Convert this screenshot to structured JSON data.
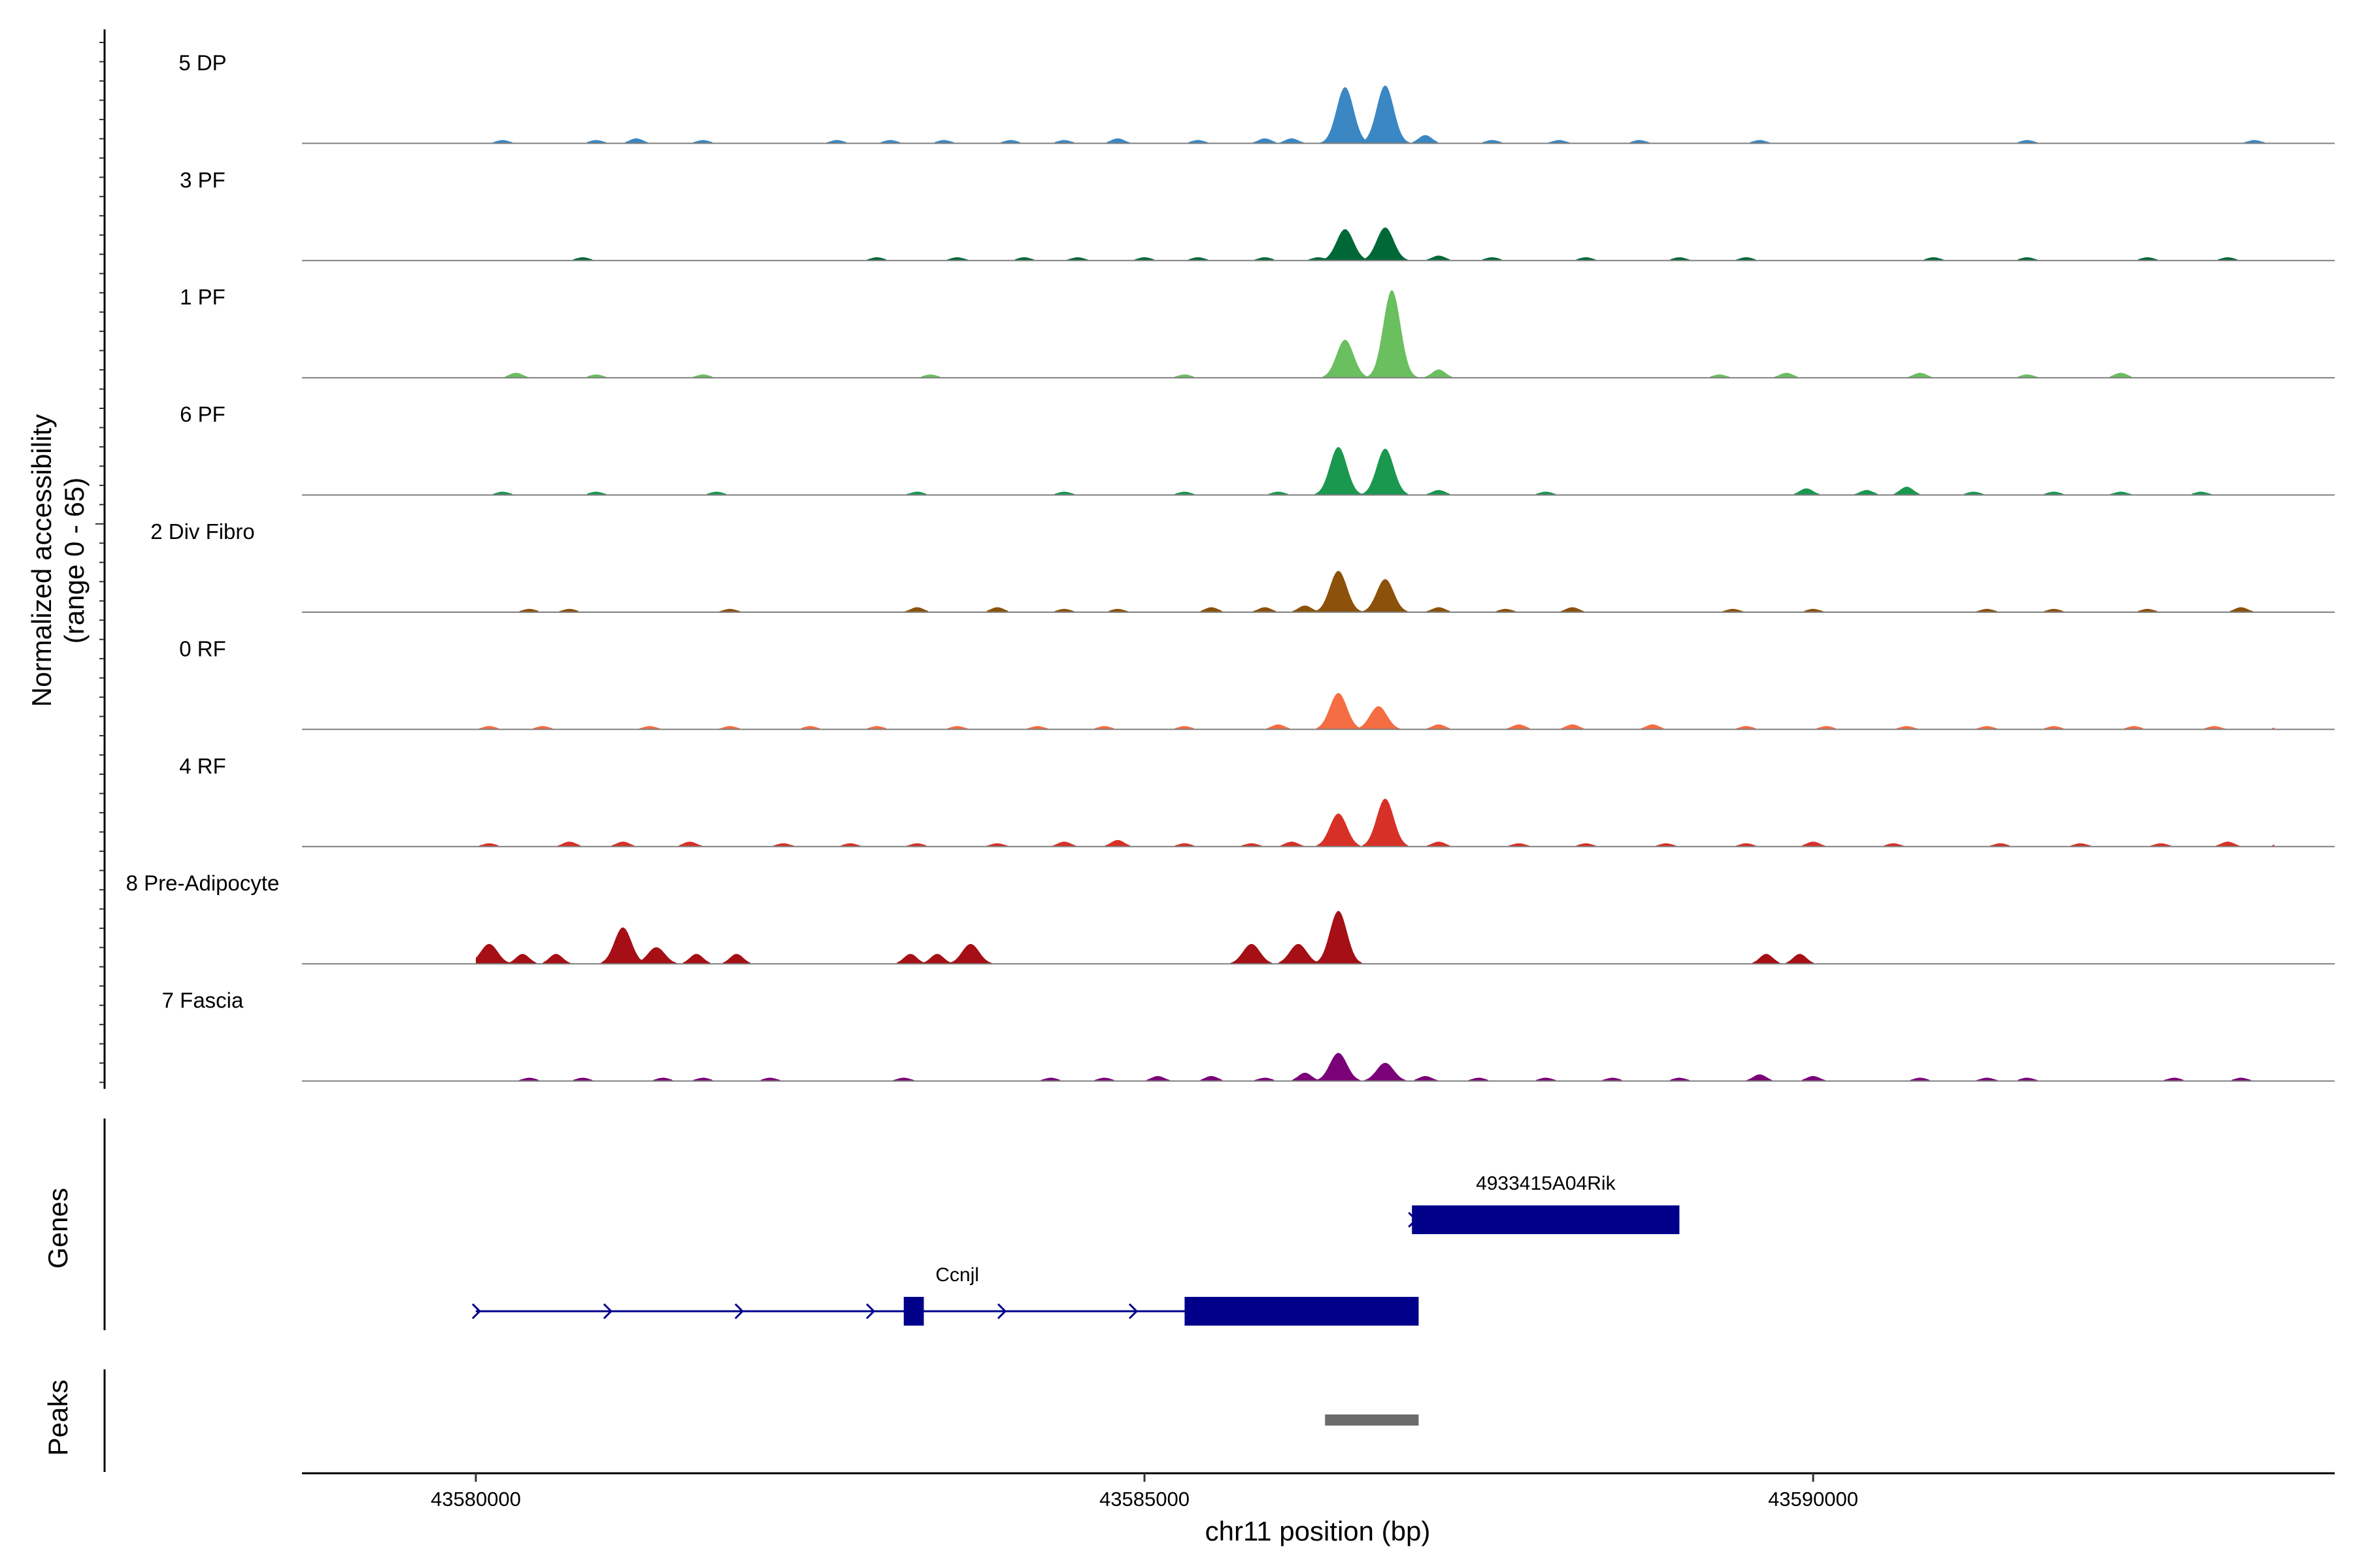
{
  "chart_data": {
    "type": "area",
    "title": "",
    "ylabel": "Normalized accessibility",
    "ylabel_sub": "(range 0 - 65)",
    "yrange": [
      0,
      65
    ],
    "xlabel": "chr11 position (bp)",
    "xlim": [
      43578700,
      43593900
    ],
    "xticks": [
      43580000,
      43585000,
      43590000
    ],
    "xtick_labels": [
      "43580000",
      "43585000",
      "43590000"
    ],
    "grid": false,
    "legend": "none",
    "series": [
      {
        "name": "5 DP",
        "color": "#3A87C3",
        "peaks": [
          [
            43580200,
            2
          ],
          [
            43580900,
            2
          ],
          [
            43581200,
            3
          ],
          [
            43581700,
            2
          ],
          [
            43582700,
            2
          ],
          [
            43583100,
            2
          ],
          [
            43583500,
            2
          ],
          [
            43584000,
            2
          ],
          [
            43584400,
            2
          ],
          [
            43584800,
            3
          ],
          [
            43585400,
            2
          ],
          [
            43585900,
            3
          ],
          [
            43586100,
            3
          ],
          [
            43586500,
            34
          ],
          [
            43586800,
            35
          ],
          [
            43587100,
            5
          ],
          [
            43587600,
            2
          ],
          [
            43588100,
            2
          ],
          [
            43588700,
            2
          ],
          [
            43589600,
            2
          ],
          [
            43591600,
            2
          ],
          [
            43593300,
            2
          ],
          [
            43593600,
            2
          ]
        ]
      },
      {
        "name": "3 PF",
        "color": "#006837",
        "peaks": [
          [
            43580800,
            2
          ],
          [
            43583000,
            2
          ],
          [
            43583600,
            2
          ],
          [
            43584100,
            2
          ],
          [
            43584500,
            2
          ],
          [
            43585000,
            2
          ],
          [
            43585400,
            2
          ],
          [
            43585900,
            2
          ],
          [
            43586300,
            2
          ],
          [
            43586500,
            19
          ],
          [
            43586800,
            20
          ],
          [
            43587200,
            3
          ],
          [
            43587600,
            2
          ],
          [
            43588300,
            2
          ],
          [
            43589000,
            2
          ],
          [
            43589500,
            2
          ],
          [
            43590900,
            2
          ],
          [
            43591600,
            2
          ],
          [
            43592500,
            2
          ],
          [
            43593100,
            2
          ]
        ]
      },
      {
        "name": "1 PF",
        "color": "#6ABF5F",
        "peaks": [
          [
            43580300,
            3
          ],
          [
            43580900,
            2
          ],
          [
            43581700,
            2
          ],
          [
            43583400,
            2
          ],
          [
            43585300,
            2
          ],
          [
            43586500,
            23
          ],
          [
            43586850,
            53
          ],
          [
            43587200,
            5
          ],
          [
            43589300,
            2
          ],
          [
            43589800,
            3
          ],
          [
            43590800,
            3
          ],
          [
            43591600,
            2
          ],
          [
            43592300,
            3
          ],
          [
            43593600,
            2
          ]
        ]
      },
      {
        "name": "6 PF",
        "color": "#1A9850",
        "peaks": [
          [
            43580200,
            2
          ],
          [
            43580900,
            2
          ],
          [
            43581800,
            2
          ],
          [
            43583300,
            2
          ],
          [
            43584400,
            2
          ],
          [
            43585300,
            2
          ],
          [
            43586000,
            2
          ],
          [
            43586450,
            29
          ],
          [
            43586800,
            28
          ],
          [
            43587200,
            3
          ],
          [
            43588000,
            2
          ],
          [
            43589950,
            4
          ],
          [
            43590400,
            3
          ],
          [
            43590700,
            5
          ],
          [
            43591200,
            2
          ],
          [
            43591800,
            2
          ],
          [
            43592300,
            2
          ],
          [
            43592900,
            2
          ],
          [
            43593600,
            2
          ]
        ]
      },
      {
        "name": "2 Div Fibro",
        "color": "#8C510A",
        "peaks": [
          [
            43580400,
            2
          ],
          [
            43580700,
            2
          ],
          [
            43581900,
            2
          ],
          [
            43583300,
            3
          ],
          [
            43583900,
            3
          ],
          [
            43584400,
            2
          ],
          [
            43584800,
            2
          ],
          [
            43585500,
            3
          ],
          [
            43585900,
            3
          ],
          [
            43586200,
            4
          ],
          [
            43586450,
            25
          ],
          [
            43586800,
            20
          ],
          [
            43587200,
            3
          ],
          [
            43587700,
            2
          ],
          [
            43588200,
            3
          ],
          [
            43589400,
            2
          ],
          [
            43590000,
            2
          ],
          [
            43591300,
            2
          ],
          [
            43591800,
            2
          ],
          [
            43592500,
            2
          ],
          [
            43593200,
            3
          ],
          [
            43593600,
            2
          ]
        ]
      },
      {
        "name": "0 RF",
        "color": "#F46D43",
        "peaks": [
          [
            43580100,
            2
          ],
          [
            43580500,
            2
          ],
          [
            43581300,
            2
          ],
          [
            43581900,
            2
          ],
          [
            43582500,
            2
          ],
          [
            43583000,
            2
          ],
          [
            43583600,
            2
          ],
          [
            43584200,
            2
          ],
          [
            43584700,
            2
          ],
          [
            43585300,
            2
          ],
          [
            43586000,
            3
          ],
          [
            43586450,
            22
          ],
          [
            43586750,
            14
          ],
          [
            43587200,
            3
          ],
          [
            43587800,
            3
          ],
          [
            43588200,
            3
          ],
          [
            43588800,
            3
          ],
          [
            43589500,
            2
          ],
          [
            43590100,
            2
          ],
          [
            43590700,
            2
          ],
          [
            43591300,
            2
          ],
          [
            43591800,
            2
          ],
          [
            43592400,
            2
          ],
          [
            43593000,
            2
          ],
          [
            43593500,
            2
          ]
        ]
      },
      {
        "name": "4 RF",
        "color": "#D73027",
        "peaks": [
          [
            43580100,
            2
          ],
          [
            43580700,
            3
          ],
          [
            43581100,
            3
          ],
          [
            43581600,
            3
          ],
          [
            43582300,
            2
          ],
          [
            43582800,
            2
          ],
          [
            43583300,
            2
          ],
          [
            43583900,
            2
          ],
          [
            43584400,
            3
          ],
          [
            43584800,
            4
          ],
          [
            43585300,
            2
          ],
          [
            43585800,
            2
          ],
          [
            43586100,
            3
          ],
          [
            43586450,
            20
          ],
          [
            43586800,
            29
          ],
          [
            43587200,
            3
          ],
          [
            43587800,
            2
          ],
          [
            43588300,
            2
          ],
          [
            43588900,
            2
          ],
          [
            43589500,
            2
          ],
          [
            43590000,
            3
          ],
          [
            43590600,
            2
          ],
          [
            43591400,
            2
          ],
          [
            43592000,
            2
          ],
          [
            43592600,
            2
          ],
          [
            43593100,
            3
          ],
          [
            43593500,
            2
          ]
        ]
      },
      {
        "name": "8 Pre-Adipocyte",
        "color": "#A50F15",
        "peaks": [
          [
            43580100,
            12
          ],
          [
            43580350,
            6
          ],
          [
            43580600,
            6
          ],
          [
            43581100,
            22
          ],
          [
            43581350,
            10
          ],
          [
            43581650,
            6
          ],
          [
            43581950,
            6
          ],
          [
            43583250,
            6
          ],
          [
            43583450,
            6
          ],
          [
            43583700,
            12
          ],
          [
            43585800,
            12
          ],
          [
            43586150,
            12
          ],
          [
            43586450,
            32
          ],
          [
            43589650,
            6
          ],
          [
            43589900,
            6
          ]
        ]
      },
      {
        "name": "7 Fascia",
        "color": "#7A0177",
        "peaks": [
          [
            43580400,
            2
          ],
          [
            43580800,
            2
          ],
          [
            43581400,
            2
          ],
          [
            43581700,
            2
          ],
          [
            43582200,
            2
          ],
          [
            43583200,
            2
          ],
          [
            43584300,
            2
          ],
          [
            43584700,
            2
          ],
          [
            43585100,
            3
          ],
          [
            43585500,
            3
          ],
          [
            43585900,
            2
          ],
          [
            43586200,
            5
          ],
          [
            43586450,
            17
          ],
          [
            43586800,
            11
          ],
          [
            43587100,
            3
          ],
          [
            43587500,
            2
          ],
          [
            43588000,
            2
          ],
          [
            43588500,
            2
          ],
          [
            43589000,
            2
          ],
          [
            43589600,
            4
          ],
          [
            43590000,
            3
          ],
          [
            43590800,
            2
          ],
          [
            43591300,
            2
          ],
          [
            43591600,
            2
          ],
          [
            43592700,
            2
          ],
          [
            43593200,
            2
          ],
          [
            43593600,
            2
          ]
        ]
      }
    ],
    "genes_track_label": "Genes",
    "genes": [
      {
        "name": "Ccnjl",
        "strand": "+",
        "start": 43580000,
        "end": 43587050,
        "row": 2,
        "exons": [
          [
            43583200,
            43583350
          ],
          [
            43585300,
            43587050
          ]
        ],
        "label_pos": 43583600
      },
      {
        "name": "4933415A04Rik",
        "strand": "+",
        "start": 43587000,
        "end": 43589000,
        "row": 1,
        "exons": [
          [
            43587000,
            43589000
          ]
        ],
        "label_pos": 43588000
      }
    ],
    "peaks_track_label": "Peaks",
    "peak_regions": [
      [
        43586350,
        43587050
      ]
    ]
  }
}
